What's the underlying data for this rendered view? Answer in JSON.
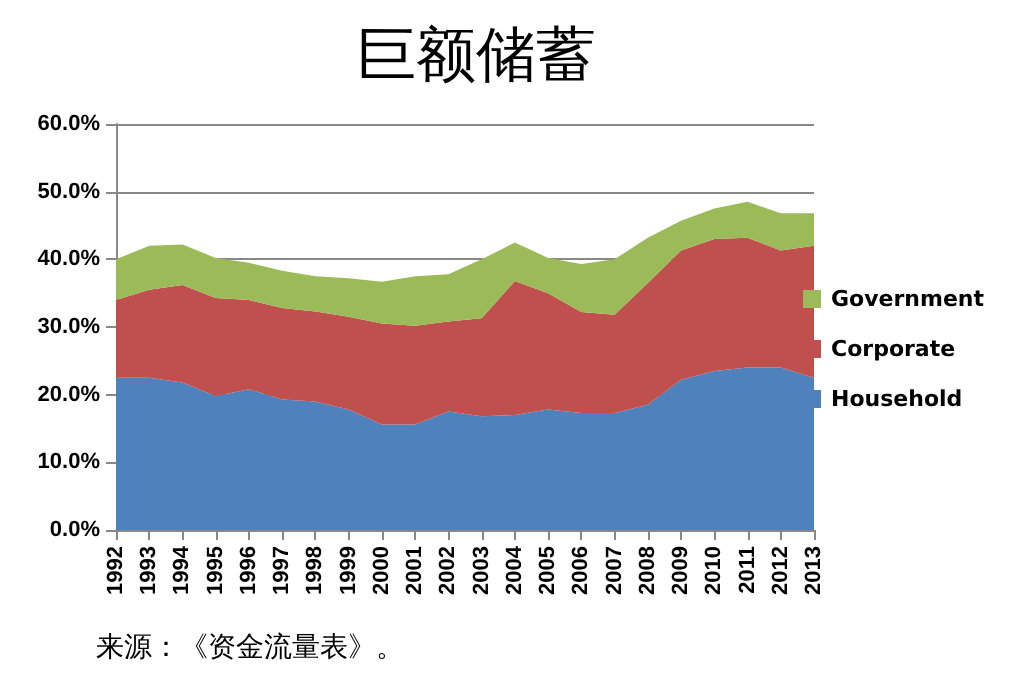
{
  "chart_data": {
    "type": "area",
    "title": "巨额储蓄",
    "stacked": true,
    "categories": [
      "1992",
      "1993",
      "1994",
      "1995",
      "1996",
      "1997",
      "1998",
      "1999",
      "2000",
      "2001",
      "2002",
      "2003",
      "2004",
      "2005",
      "2006",
      "2007",
      "2008",
      "2009",
      "2010",
      "2011",
      "2012",
      "2013"
    ],
    "series": [
      {
        "name": "Household",
        "color": "#4f81bd",
        "values": [
          22.5,
          22.5,
          21.8,
          19.8,
          20.8,
          19.3,
          19,
          17.8,
          15.6,
          15.6,
          17.5,
          16.8,
          17,
          17.8,
          17.3,
          17.3,
          18.5,
          22.2,
          23.5,
          24,
          24,
          22.5
        ]
      },
      {
        "name": "Corporate",
        "color": "#c0504d",
        "values": [
          11.5,
          13,
          14.4,
          14.5,
          13.2,
          13.5,
          13.3,
          13.7,
          14.9,
          14.6,
          13.3,
          14.5,
          19.8,
          17.2,
          14.9,
          14.5,
          18,
          19.1,
          19.5,
          19.2,
          17.3,
          19.5
        ]
      },
      {
        "name": "Government",
        "color": "#9bbb59",
        "values": [
          6,
          6.5,
          6,
          5.9,
          5.5,
          5.5,
          5.2,
          5.7,
          6.2,
          7.3,
          7,
          8.7,
          5.7,
          5.2,
          7.1,
          8.2,
          6.7,
          4.4,
          4.5,
          5.3,
          5.5,
          4.8
        ]
      }
    ],
    "ylim": [
      0,
      60
    ],
    "yticks": [
      {
        "value": 0,
        "label": "0.0%"
      },
      {
        "value": 10,
        "label": "10.0%"
      },
      {
        "value": 20,
        "label": "20.0%"
      },
      {
        "value": 30,
        "label": "30.0%"
      },
      {
        "value": 40,
        "label": "40.0%"
      },
      {
        "value": 50,
        "label": "50.0%"
      },
      {
        "value": 60,
        "label": "60.0%"
      }
    ],
    "grid": "y",
    "legend": "right",
    "annotations": [
      "来源：《资金流量表》。"
    ]
  }
}
